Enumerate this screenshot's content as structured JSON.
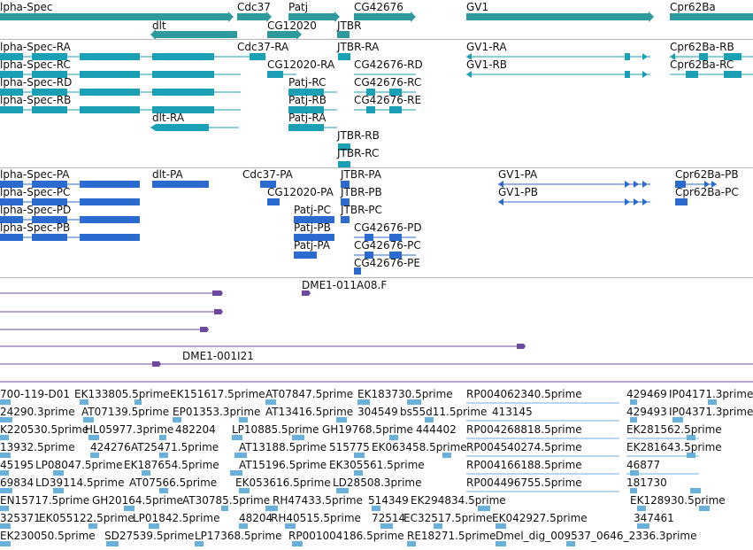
{
  "colors": {
    "gene": "#2f9a9e",
    "mrna": "#1a9fb5",
    "cds": "#2b6bcf",
    "clone": "#6b4aa0",
    "est": "#6ab0dc",
    "separator": "#b8b8b8"
  },
  "gene_track": {
    "labels": [
      "lpha-Spec",
      "Cdc37",
      "Patj",
      "CG42676",
      "GV1",
      "Cpr62Ba",
      "dlt",
      "CG12020",
      "JTBR"
    ]
  },
  "mrna_track": {
    "labels": [
      "lpha-Spec-RA",
      "Cdc37-RA",
      "JTBR-RA",
      "GV1-RA",
      "Cpr62Ba-RB",
      "lpha-Spec-RC",
      "CG12020-RA",
      "CG42676-RD",
      "GV1-RB",
      "Cpr62Ba-RC",
      "lpha-Spec-RD",
      "Patj-RC",
      "CG42676-RC",
      "lpha-Spec-RB",
      "Patj-RB",
      "CG42676-RE",
      "dlt-RA",
      "Patj-RA",
      "JTBR-RB",
      "JTBR-RC"
    ]
  },
  "cds_track": {
    "labels": [
      "lpha-Spec-PA",
      "dlt-PA",
      "Cdc37-PA",
      "JTBR-PA",
      "GV1-PA",
      "Cpr62Ba-PB",
      "lpha-Spec-PC",
      "CG12020-PA",
      "JTBR-PB",
      "GV1-PB",
      "Cpr62Ba-PC",
      "lpha-Spec-PD",
      "Patj-PC",
      "JTBR-PC",
      "lpha-Spec-PB",
      "Patj-PB",
      "CG42676-PD",
      "Patj-PA",
      "CG42676-PC",
      "CG42676-PE"
    ]
  },
  "clone_track": {
    "labels": [
      "DME1-011A08.F",
      "DME1-001I21"
    ]
  },
  "est_track": {
    "rows": [
      [
        "700-119-D01",
        "EK133805.5prime",
        "EK151617.5prime",
        "AT07847.5prime",
        "EK183730.5prime",
        "RP004062340.5prime",
        "429469",
        "IP04171.3prime"
      ],
      [
        "24290.3prime",
        "AT07139.5prime",
        "EP01353.3prime",
        "AT13416.5prime",
        "304549",
        "bs55d11.5prime",
        "413145",
        "429493",
        "IP04371.3prime"
      ],
      [
        "K220530.5prime",
        "HL05977.3prime",
        "482204",
        "LP10885.5prime",
        "GH19768.5prime",
        "444402",
        "RP004268818.5prime",
        "EK281562.5prime"
      ],
      [
        "13932.5prime",
        "424276",
        "AT25471.5prime",
        "AT13188.5prime",
        "515775",
        "EK063458.5prime",
        "RP004540274.5prime",
        "EK281643.5prime"
      ],
      [
        "45195",
        "LP08047.5prime",
        "EK187654.5prime",
        "AT15196.5prime",
        "EK305561.5prime",
        "RP004166188.5prime",
        "46877"
      ],
      [
        "69834",
        "LD39114.5prime",
        "AT07566.5prime",
        "EK053616.5prime",
        "LD28508.3prime",
        "RP004496755.5prime",
        "181730"
      ],
      [
        "EN15717.5prime",
        "GH20164.5prime",
        "AT30785.5prime",
        "RH47433.5prime",
        "514349",
        "EK294834.5prime",
        "EK128930.5prime"
      ],
      [
        "325371",
        "EK055122.5prime",
        "LP01842.5prime",
        "48204",
        "RH40515.5prime",
        "72514",
        "EC32517.5prime",
        "EK042927.5prime",
        "347461"
      ],
      [
        "EK230050.5prime",
        "SD27539.5prime",
        "LP17368.5prime",
        "RP001004186.5prime",
        "RE18271.5prime",
        "Dmel_dig_009537_0646_2336.3prime"
      ]
    ]
  }
}
